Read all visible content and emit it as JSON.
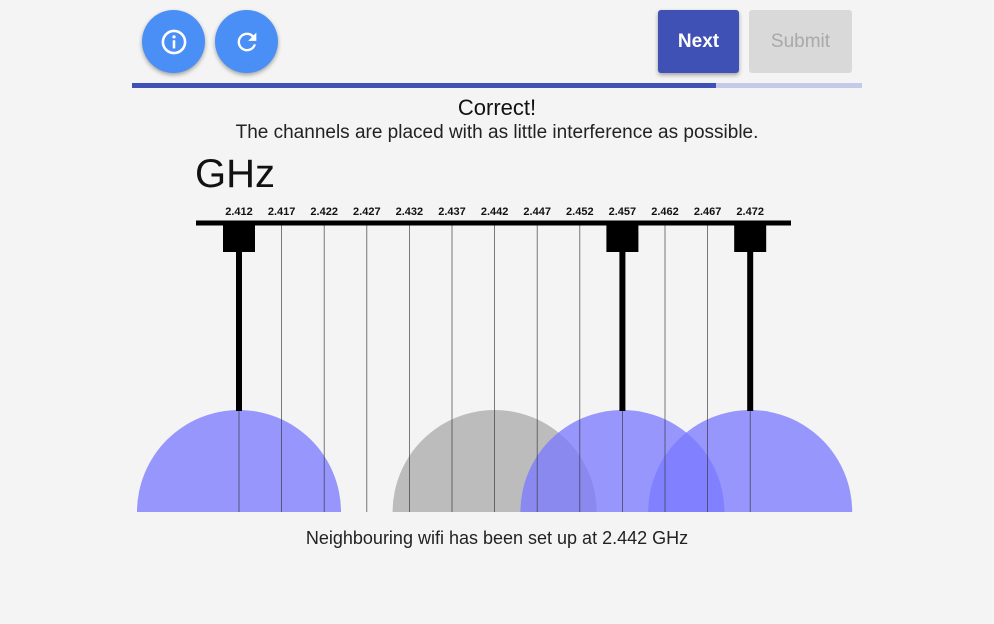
{
  "toolbar": {
    "info_icon": "info-circle-icon",
    "reset_icon": "refresh-icon",
    "next_label": "Next",
    "submit_label": "Submit",
    "primary_color": "#3f51b5",
    "round_button_color": "#4a8ff5"
  },
  "progress": {
    "fraction": 0.8
  },
  "status": {
    "title": "Correct!",
    "message": "The channels are placed with as little interference as possible."
  },
  "unit": "GHz",
  "frequencies": [
    "2.412",
    "2.417",
    "2.422",
    "2.427",
    "2.432",
    "2.437",
    "2.442",
    "2.447",
    "2.452",
    "2.457",
    "2.462",
    "2.467",
    "2.472"
  ],
  "placed_channels": [
    "2.412",
    "2.457",
    "2.472"
  ],
  "neighbour_channel": "2.442",
  "colors": {
    "placed": "#7b7bff",
    "neighbour": "#a9a9a9",
    "axis": "#000000"
  },
  "footer": "Neighbouring wifi has been set up at 2.442 GHz"
}
